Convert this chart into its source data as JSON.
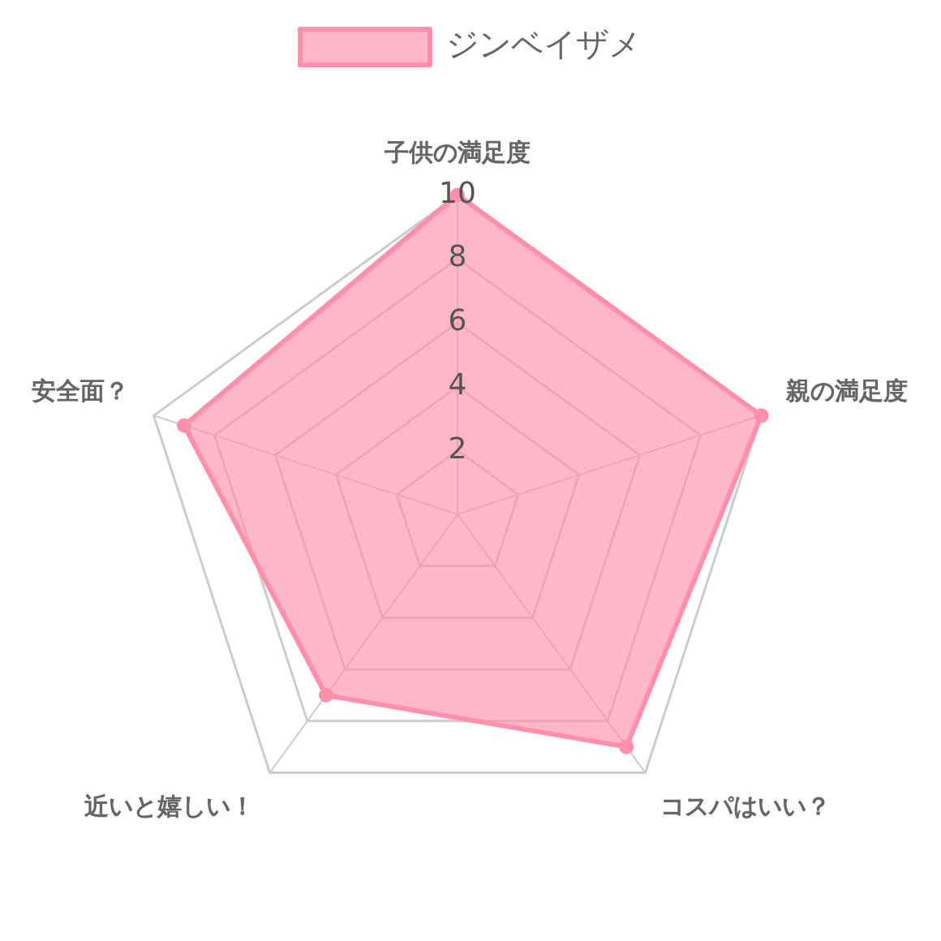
{
  "chart_data": {
    "type": "radar",
    "categories": [
      "子供の満足度",
      "親の満足度",
      "コスパはいい？",
      "近いと嬉しい！",
      "安全面？"
    ],
    "series": [
      {
        "name": "ジンベイザメ",
        "color": "#ff8fab",
        "values": [
          10,
          10,
          9,
          7,
          9
        ]
      }
    ],
    "ylim": [
      0,
      10
    ],
    "yticks": [
      2,
      4,
      6,
      8,
      10
    ],
    "grid": true,
    "legend": "top",
    "marker": "circle"
  }
}
